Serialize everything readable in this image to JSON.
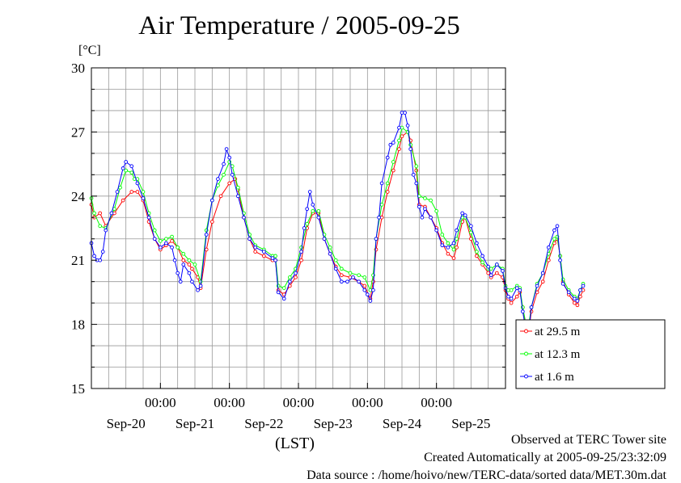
{
  "chart_data": {
    "type": "line",
    "title": "Air Temperature / 2005-09-25",
    "ylabel": "[°C]",
    "xlabel": "(LST)",
    "ylim": [
      15,
      30
    ],
    "y_ticks": [
      "15",
      "18",
      "21",
      "24",
      "27",
      "30"
    ],
    "x_range_hours": [
      -108,
      36
    ],
    "x_time_ticks": [
      "00:00",
      "00:00",
      "00:00",
      "00:00",
      "00:00"
    ],
    "x_date_ticks": [
      "Sep-20",
      "Sep-21",
      "Sep-22",
      "Sep-23",
      "Sep-24",
      "Sep-25"
    ],
    "grid": true,
    "legend_position": "bottom-right, outside plot",
    "series": [
      {
        "name": "at 29.5 m",
        "color": "#ff0000",
        "marker": "circle",
        "points": [
          [
            -108,
            23.6
          ],
          [
            -107,
            23.0
          ],
          [
            -105,
            23.2
          ],
          [
            -103,
            22.6
          ],
          [
            -100,
            23.2
          ],
          [
            -97,
            23.8
          ],
          [
            -94,
            24.2
          ],
          [
            -92,
            24.2
          ],
          [
            -90,
            23.8
          ],
          [
            -88,
            22.8
          ],
          [
            -86,
            22.0
          ],
          [
            -84,
            21.5
          ],
          [
            -82,
            21.7
          ],
          [
            -80,
            21.9
          ],
          [
            -78,
            21.6
          ],
          [
            -76,
            21.0
          ],
          [
            -74,
            20.8
          ],
          [
            -73,
            20.6
          ],
          [
            -71,
            20.2
          ],
          [
            -70,
            19.7
          ],
          [
            -68,
            21.5
          ],
          [
            -66,
            22.8
          ],
          [
            -63,
            24.0
          ],
          [
            -60,
            24.6
          ],
          [
            -58,
            24.8
          ],
          [
            -57,
            24.3
          ],
          [
            -55,
            23.0
          ],
          [
            -53,
            22.0
          ],
          [
            -51,
            21.4
          ],
          [
            -48,
            21.2
          ],
          [
            -45,
            21.0
          ],
          [
            -44,
            21.0
          ],
          [
            -43,
            19.6
          ],
          [
            -41,
            19.4
          ],
          [
            -39,
            19.8
          ],
          [
            -37,
            20.2
          ],
          [
            -35,
            21.0
          ],
          [
            -33,
            22.5
          ],
          [
            -31,
            23.2
          ],
          [
            -29,
            23.2
          ],
          [
            -27,
            22.0
          ],
          [
            -25,
            21.3
          ],
          [
            -23,
            20.7
          ],
          [
            -21,
            20.3
          ],
          [
            -18,
            20.2
          ],
          [
            -15,
            20.0
          ],
          [
            -13,
            19.8
          ],
          [
            -11,
            19.2
          ],
          [
            -10,
            20.0
          ],
          [
            -9,
            21.5
          ],
          [
            -7,
            23.0
          ],
          [
            -5,
            24.2
          ],
          [
            -3,
            25.2
          ],
          [
            -1,
            26.2
          ],
          [
            0,
            26.8
          ],
          [
            2,
            27.0
          ],
          [
            3,
            26.6
          ],
          [
            5,
            25.2
          ],
          [
            6,
            23.6
          ],
          [
            8,
            23.5
          ],
          [
            10,
            23.0
          ],
          [
            12,
            22.5
          ],
          [
            14,
            21.8
          ],
          [
            16,
            21.3
          ],
          [
            18,
            21.1
          ],
          [
            19,
            21.6
          ],
          [
            21,
            22.8
          ],
          [
            22,
            23.0
          ],
          [
            24,
            22.0
          ],
          [
            26,
            21.2
          ],
          [
            28,
            20.8
          ],
          [
            30,
            20.4
          ],
          [
            31,
            20.2
          ],
          [
            33,
            20.4
          ],
          [
            35,
            20.2
          ],
          [
            36,
            19.6
          ],
          [
            37,
            19.2
          ],
          [
            38,
            19.0
          ],
          [
            40,
            19.3
          ],
          [
            41,
            19.5
          ],
          [
            42,
            18.8
          ],
          [
            43,
            17.9
          ],
          [
            44,
            17.6
          ],
          [
            45,
            18.6
          ],
          [
            47,
            19.5
          ],
          [
            49,
            20.0
          ],
          [
            51,
            21.0
          ],
          [
            53,
            21.8
          ],
          [
            54,
            22.0
          ],
          [
            55,
            21.2
          ],
          [
            56,
            20.0
          ],
          [
            58,
            19.4
          ],
          [
            60,
            19.0
          ],
          [
            61,
            18.9
          ],
          [
            62,
            19.3
          ],
          [
            63,
            19.6
          ]
        ]
      },
      {
        "name": "at 12.3 m",
        "color": "#00ff00",
        "marker": "circle",
        "points": [
          [
            -108,
            23.9
          ],
          [
            -107,
            23.2
          ],
          [
            -105,
            22.6
          ],
          [
            -103,
            22.5
          ],
          [
            -100,
            23.4
          ],
          [
            -98,
            24.4
          ],
          [
            -96,
            25.2
          ],
          [
            -94,
            25.1
          ],
          [
            -93,
            24.8
          ],
          [
            -92,
            24.8
          ],
          [
            -90,
            24.2
          ],
          [
            -88,
            23.2
          ],
          [
            -86,
            22.4
          ],
          [
            -84,
            21.9
          ],
          [
            -82,
            22.0
          ],
          [
            -80,
            22.1
          ],
          [
            -78,
            21.6
          ],
          [
            -76,
            21.3
          ],
          [
            -74,
            21.0
          ],
          [
            -72,
            20.8
          ],
          [
            -70,
            20.0
          ],
          [
            -68,
            22.4
          ],
          [
            -66,
            23.8
          ],
          [
            -64,
            24.5
          ],
          [
            -62,
            25.0
          ],
          [
            -60,
            25.6
          ],
          [
            -59,
            25.4
          ],
          [
            -57,
            24.4
          ],
          [
            -55,
            23.2
          ],
          [
            -53,
            22.2
          ],
          [
            -51,
            21.7
          ],
          [
            -48,
            21.5
          ],
          [
            -45,
            21.2
          ],
          [
            -44,
            21.2
          ],
          [
            -43,
            19.8
          ],
          [
            -41,
            19.7
          ],
          [
            -39,
            20.2
          ],
          [
            -37,
            20.6
          ],
          [
            -35,
            21.6
          ],
          [
            -33,
            22.7
          ],
          [
            -31,
            23.3
          ],
          [
            -29,
            23.3
          ],
          [
            -27,
            22.2
          ],
          [
            -25,
            21.6
          ],
          [
            -23,
            21.0
          ],
          [
            -21,
            20.6
          ],
          [
            -18,
            20.4
          ],
          [
            -15,
            20.3
          ],
          [
            -13,
            20.2
          ],
          [
            -11,
            19.6
          ],
          [
            -10,
            20.3
          ],
          [
            -9,
            22.0
          ],
          [
            -7,
            23.6
          ],
          [
            -5,
            24.6
          ],
          [
            -3,
            25.6
          ],
          [
            -1,
            26.6
          ],
          [
            0,
            27.2
          ],
          [
            2,
            27.0
          ],
          [
            3,
            26.4
          ],
          [
            5,
            25.4
          ],
          [
            6,
            24.0
          ],
          [
            8,
            23.9
          ],
          [
            10,
            23.8
          ],
          [
            12,
            23.3
          ],
          [
            14,
            22.2
          ],
          [
            16,
            21.8
          ],
          [
            18,
            21.5
          ],
          [
            19,
            22.0
          ],
          [
            21,
            23.0
          ],
          [
            22,
            23.0
          ],
          [
            24,
            22.3
          ],
          [
            26,
            21.4
          ],
          [
            28,
            20.9
          ],
          [
            30,
            20.6
          ],
          [
            31,
            20.6
          ],
          [
            33,
            20.8
          ],
          [
            35,
            20.6
          ],
          [
            36,
            19.8
          ],
          [
            37,
            19.6
          ],
          [
            38,
            19.6
          ],
          [
            40,
            19.8
          ],
          [
            41,
            19.7
          ],
          [
            42,
            18.8
          ],
          [
            43,
            18.1
          ],
          [
            44,
            17.9
          ],
          [
            45,
            18.8
          ],
          [
            47,
            19.9
          ],
          [
            49,
            20.4
          ],
          [
            51,
            21.3
          ],
          [
            53,
            22.0
          ],
          [
            54,
            22.1
          ],
          [
            55,
            21.2
          ],
          [
            56,
            20.1
          ],
          [
            58,
            19.6
          ],
          [
            60,
            19.3
          ],
          [
            61,
            19.2
          ],
          [
            62,
            19.6
          ],
          [
            63,
            19.9
          ]
        ]
      },
      {
        "name": "at 1.6 m",
        "color": "#0000ff",
        "marker": "circle",
        "points": [
          [
            -108,
            21.8
          ],
          [
            -107,
            21.2
          ],
          [
            -106,
            21.0
          ],
          [
            -105,
            21.0
          ],
          [
            -104,
            21.4
          ],
          [
            -103,
            22.4
          ],
          [
            -101,
            23.2
          ],
          [
            -99,
            24.2
          ],
          [
            -97,
            25.3
          ],
          [
            -96,
            25.6
          ],
          [
            -94,
            25.4
          ],
          [
            -92,
            24.6
          ],
          [
            -90,
            23.9
          ],
          [
            -88,
            23.0
          ],
          [
            -86,
            22.0
          ],
          [
            -84,
            21.6
          ],
          [
            -82,
            21.8
          ],
          [
            -80,
            21.6
          ],
          [
            -79,
            21.0
          ],
          [
            -78,
            20.4
          ],
          [
            -77,
            20.0
          ],
          [
            -76,
            20.8
          ],
          [
            -74,
            20.4
          ],
          [
            -73,
            20.0
          ],
          [
            -71,
            19.6
          ],
          [
            -70,
            19.8
          ],
          [
            -68,
            22.2
          ],
          [
            -66,
            23.8
          ],
          [
            -64,
            24.8
          ],
          [
            -62,
            25.5
          ],
          [
            -61,
            26.2
          ],
          [
            -60,
            25.8
          ],
          [
            -59,
            25.0
          ],
          [
            -57,
            24.0
          ],
          [
            -55,
            23.0
          ],
          [
            -53,
            22.0
          ],
          [
            -51,
            21.6
          ],
          [
            -48,
            21.4
          ],
          [
            -45,
            21.1
          ],
          [
            -44,
            21.0
          ],
          [
            -43,
            19.5
          ],
          [
            -41,
            19.2
          ],
          [
            -39,
            20.0
          ],
          [
            -37,
            20.4
          ],
          [
            -35,
            21.4
          ],
          [
            -34,
            22.5
          ],
          [
            -33,
            23.4
          ],
          [
            -32,
            24.2
          ],
          [
            -31,
            23.6
          ],
          [
            -29,
            23.0
          ],
          [
            -27,
            22.0
          ],
          [
            -25,
            21.3
          ],
          [
            -23,
            20.6
          ],
          [
            -21,
            20.0
          ],
          [
            -19,
            20.0
          ],
          [
            -17,
            20.2
          ],
          [
            -15,
            20.0
          ],
          [
            -13,
            19.6
          ],
          [
            -12,
            19.4
          ],
          [
            -11,
            19.1
          ],
          [
            -10,
            19.6
          ],
          [
            -9,
            22.0
          ],
          [
            -8,
            23.0
          ],
          [
            -7,
            24.6
          ],
          [
            -5,
            25.8
          ],
          [
            -4,
            26.4
          ],
          [
            -3,
            26.5
          ],
          [
            -1,
            27.2
          ],
          [
            0,
            27.9
          ],
          [
            1,
            27.9
          ],
          [
            2,
            27.3
          ],
          [
            3,
            26.2
          ],
          [
            4,
            25.0
          ],
          [
            5,
            24.6
          ],
          [
            6,
            23.5
          ],
          [
            7,
            23.0
          ],
          [
            8,
            23.4
          ],
          [
            10,
            23.0
          ],
          [
            12,
            22.4
          ],
          [
            14,
            21.7
          ],
          [
            16,
            21.6
          ],
          [
            18,
            21.8
          ],
          [
            19,
            22.4
          ],
          [
            21,
            23.2
          ],
          [
            22,
            23.1
          ],
          [
            24,
            22.6
          ],
          [
            26,
            21.8
          ],
          [
            28,
            21.2
          ],
          [
            30,
            20.7
          ],
          [
            31,
            20.3
          ],
          [
            33,
            20.8
          ],
          [
            35,
            20.5
          ],
          [
            36,
            19.7
          ],
          [
            37,
            19.3
          ],
          [
            38,
            19.2
          ],
          [
            40,
            19.7
          ],
          [
            41,
            19.6
          ],
          [
            42,
            18.6
          ],
          [
            43,
            17.8
          ],
          [
            44,
            17.6
          ],
          [
            45,
            18.8
          ],
          [
            47,
            19.8
          ],
          [
            49,
            20.4
          ],
          [
            51,
            21.6
          ],
          [
            53,
            22.4
          ],
          [
            54,
            22.6
          ],
          [
            55,
            21.0
          ],
          [
            56,
            19.9
          ],
          [
            58,
            19.5
          ],
          [
            60,
            19.2
          ],
          [
            61,
            19.1
          ],
          [
            62,
            19.6
          ],
          [
            63,
            19.8
          ]
        ]
      }
    ]
  },
  "footer": {
    "line1": "Observed at TERC Tower site",
    "line2": "Created Automatically at 2005-09-25/23:32:09",
    "line3": "Data source : /home/hoivo/new/TERC-data/sorted  data/MET.30m.dat"
  }
}
